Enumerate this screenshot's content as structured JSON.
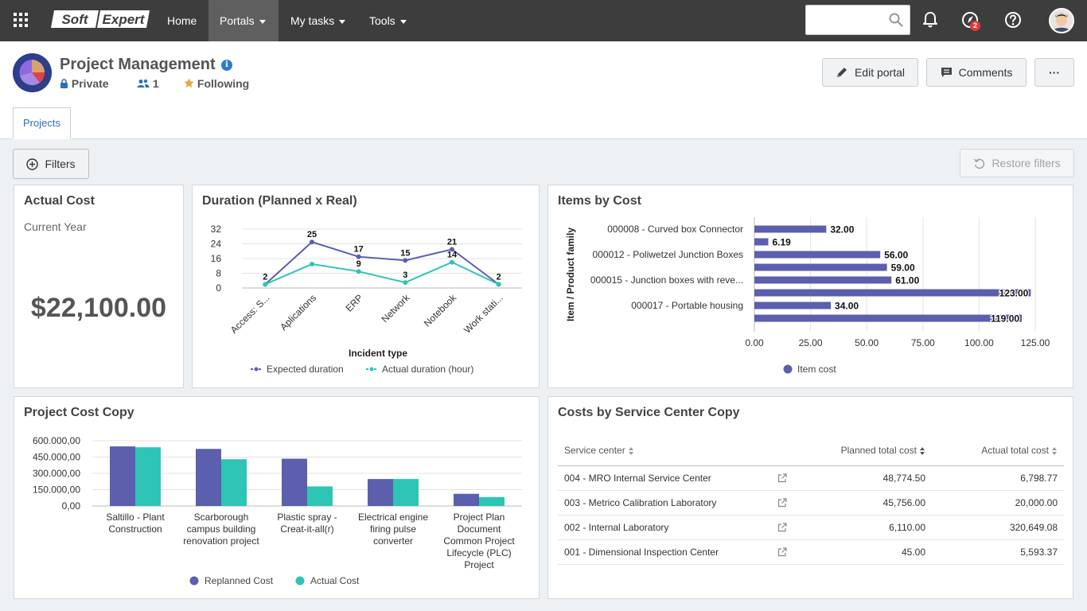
{
  "topbar": {
    "logo_text": "SoftExpert",
    "nav": [
      {
        "label": "Home"
      },
      {
        "label": "Portals"
      },
      {
        "label": "My tasks"
      },
      {
        "label": "Tools"
      }
    ],
    "search_placeholder": "",
    "notifications_badge": "2"
  },
  "header": {
    "title": "Project Management",
    "privacy": "Private",
    "members": "1",
    "following": "Following",
    "edit_label": "Edit portal",
    "comments_label": "Comments",
    "more_label": "···"
  },
  "tabs": [
    {
      "label": "Projects"
    }
  ],
  "toolbar": {
    "filters_label": "Filters",
    "restore_label": "Restore filters"
  },
  "actual_cost": {
    "title": "Actual Cost",
    "subtitle": "Current Year",
    "value": "$22,100.00"
  },
  "duration_chart": {
    "title": "Duration (Planned x Real)",
    "xlabel": "Incident type",
    "colors": {
      "expected": "#5c5fad",
      "actual": "#2ec4b6"
    },
    "chart_data": {
      "type": "line",
      "categories": [
        "Access: S...",
        "Aplications",
        "ERP",
        "Network",
        "Notebook",
        "Work stati..."
      ],
      "series": [
        {
          "name": "Expected duration",
          "values": [
            2,
            25,
            17,
            15,
            21,
            2
          ]
        },
        {
          "name": "Actual duration (hour)",
          "values": [
            2,
            13,
            9,
            3,
            14,
            2
          ]
        }
      ],
      "value_labels": [
        "2",
        "25",
        "17",
        "15",
        "21",
        "2"
      ],
      "value_labels_2": [
        "",
        "",
        "9",
        "3",
        "14",
        ""
      ],
      "yticks": [
        "0",
        "8",
        "16",
        "24",
        "32"
      ],
      "ylim": [
        0,
        32
      ],
      "legend": "bottom"
    }
  },
  "items_chart": {
    "title": "Items by Cost",
    "ylabel": "Item / Product family",
    "legend_label": "Item cost",
    "color": "#5c5fad",
    "chart_data": {
      "type": "bar",
      "orientation": "horizontal",
      "category_labels": [
        "000008 - Curved box Connector",
        "",
        "000012 - Poliwetzel Junction Boxes",
        "",
        "000015 - Junction boxes with reve...",
        "",
        "000017 - Portable housing",
        ""
      ],
      "values": [
        32.0,
        6.19,
        56.0,
        59.0,
        61.0,
        123.0,
        34.0,
        119.0
      ],
      "value_labels": [
        "32.00",
        "6.19",
        "56.00",
        "59.00",
        "61.00",
        "123.00",
        "34.00",
        "119.00"
      ],
      "xticks": [
        "0.00",
        "25.00",
        "50.00",
        "75.00",
        "100.00",
        "125.00"
      ],
      "xlim": [
        0,
        125
      ],
      "legend": "bottom"
    }
  },
  "project_cost_chart": {
    "title": "Project Cost Copy",
    "colors": {
      "replanned": "#5c5fad",
      "actual": "#2ec4b6"
    },
    "chart_data": {
      "type": "bar",
      "categories": [
        [
          "Saltillo - Plant",
          "Construction"
        ],
        [
          "Scarborough",
          "campus building",
          "renovation project"
        ],
        [
          "Plastic spray -",
          "Creat-it-all(r)"
        ],
        [
          "Electrical engine",
          "firing pulse",
          "converter"
        ],
        [
          "Project Plan",
          "Document",
          "Common Project",
          "Lifecycle (PLC)",
          "Project"
        ]
      ],
      "series": [
        {
          "name": "Replanned Cost",
          "values": [
            548000,
            525000,
            435000,
            248000,
            112000
          ]
        },
        {
          "name": "Actual Cost",
          "values": [
            540000,
            430000,
            180000,
            248000,
            82000
          ]
        }
      ],
      "yticks": [
        "0,00",
        "150.000,00",
        "300.000,00",
        "450.000,00",
        "600.000,00"
      ],
      "ylim": [
        0,
        600000
      ],
      "legend": "bottom"
    }
  },
  "service_costs": {
    "title": "Costs by Service Center Copy",
    "columns": [
      "Service center",
      "Planned total cost",
      "Actual total cost"
    ],
    "rows": [
      {
        "center": "004 - MRO Internal Service Center",
        "planned": "48,774.50",
        "actual": "6,798.77"
      },
      {
        "center": "003 - Metrico Calibration Laboratory",
        "planned": "45,756.00",
        "actual": "20,000.00"
      },
      {
        "center": "002 - Internal Laboratory",
        "planned": "6,110.00",
        "actual": "320,649.08"
      },
      {
        "center": "001 - Dimensional Inspection Center",
        "planned": "45.00",
        "actual": "5,593.37"
      }
    ]
  }
}
